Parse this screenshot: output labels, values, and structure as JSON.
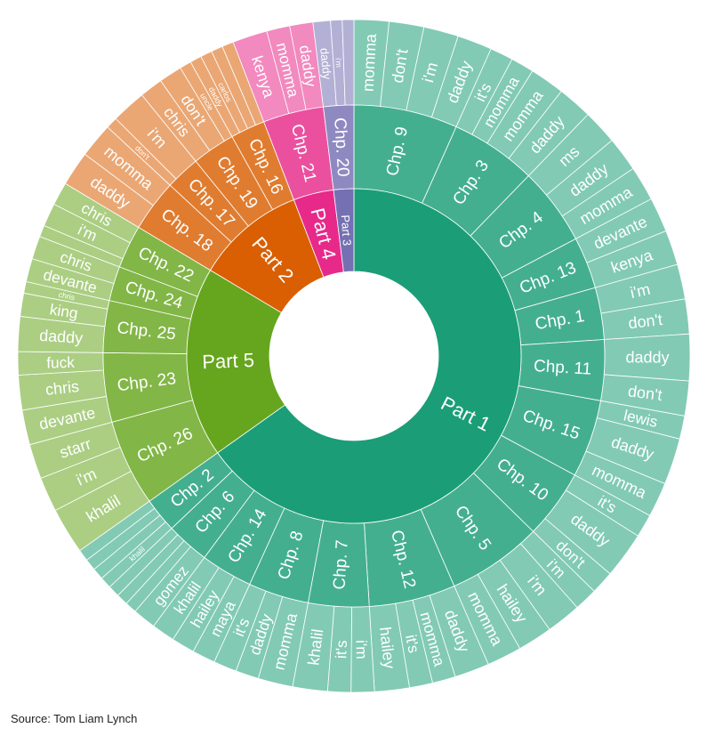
{
  "source_text": "Source: Tom Liam Lynch",
  "chart_data": {
    "type": "sunburst",
    "title": "",
    "root": {
      "value": 1
    },
    "parts": [
      {
        "name": "Part 1",
        "color": "#1b9e77",
        "chapters": [
          {
            "name": "Chp. 9",
            "words": [
              {
                "w": "momma",
                "v": 3
              },
              {
                "w": "don't",
                "v": 3
              },
              {
                "w": "i'm",
                "v": 3
              },
              {
                "w": "daddy",
                "v": 3
              }
            ]
          },
          {
            "name": "Chp. 3",
            "words": [
              {
                "w": "it's",
                "v": 2
              },
              {
                "w": "momma",
                "v": 2
              },
              {
                "w": "momma",
                "v": 3
              },
              {
                "w": "daddy",
                "v": 3
              }
            ]
          },
          {
            "name": "Chp. 4",
            "words": [
              {
                "w": "ms",
                "v": 3
              },
              {
                "w": "daddy",
                "v": 3
              },
              {
                "w": "momma",
                "v": 3
              }
            ]
          },
          {
            "name": "Chp. 13",
            "words": [
              {
                "w": "devante",
                "v": 3
              },
              {
                "w": "kenya",
                "v": 3
              }
            ]
          },
          {
            "name": "Chp. 1",
            "words": [
              {
                "w": "i'm",
                "v": 3
              },
              {
                "w": "don't",
                "v": 3
              }
            ]
          },
          {
            "name": "Chp. 11",
            "words": [
              {
                "w": "daddy",
                "v": 4
              },
              {
                "w": "don't",
                "v": 3
              }
            ]
          },
          {
            "name": "Chp. 15",
            "words": [
              {
                "w": "lewis",
                "v": 2
              },
              {
                "w": "daddy",
                "v": 4
              },
              {
                "w": "momma",
                "v": 3
              }
            ]
          },
          {
            "name": "Chp. 10",
            "words": [
              {
                "w": "it's",
                "v": 2
              },
              {
                "w": "daddy",
                "v": 4
              },
              {
                "w": "don't",
                "v": 2
              }
            ]
          },
          {
            "name": "Chp. 5",
            "words": [
              {
                "w": "i'm",
                "v": 2
              },
              {
                "w": "i'm",
                "v": 3
              },
              {
                "w": "hailey",
                "v": 3
              },
              {
                "w": "momma",
                "v": 3
              }
            ]
          },
          {
            "name": "Chp. 12",
            "words": [
              {
                "w": "daddy",
                "v": 3
              },
              {
                "w": "momma",
                "v": 2
              },
              {
                "w": "it's",
                "v": 2
              },
              {
                "w": "hailey",
                "v": 3
              }
            ]
          },
          {
            "name": "Chp. 7",
            "words": [
              {
                "w": "i'm",
                "v": 2
              },
              {
                "w": "it's",
                "v": 2
              },
              {
                "w": "khalil",
                "v": 3
              }
            ]
          },
          {
            "name": "Chp. 8",
            "words": [
              {
                "w": "momma",
                "v": 3
              },
              {
                "w": "daddy",
                "v": 2
              },
              {
                "w": "it's",
                "v": 2
              }
            ]
          },
          {
            "name": "Chp. 14",
            "words": [
              {
                "w": "maya",
                "v": 2
              },
              {
                "w": "hailey",
                "v": 2
              },
              {
                "w": "khalil",
                "v": 2
              }
            ]
          },
          {
            "name": "Chp. 6",
            "words": [
              {
                "w": "gomez",
                "v": 2
              },
              {
                "w": "",
                "v": 1
              },
              {
                "w": "",
                "v": 1
              },
              {
                "w": "",
                "v": 1
              }
            ]
          },
          {
            "name": "Chp. 2",
            "words": [
              {
                "w": "khalil",
                "v": 1
              },
              {
                "w": "",
                "v": 1
              },
              {
                "w": "",
                "v": 1
              },
              {
                "w": "",
                "v": 1
              }
            ]
          }
        ]
      },
      {
        "name": "Part 5",
        "color": "#66a61e",
        "chapters": [
          {
            "name": "Chp. 26",
            "words": [
              {
                "w": "khalil",
                "v": 4
              },
              {
                "w": "i'm",
                "v": 3
              },
              {
                "w": "starr",
                "v": 3
              }
            ]
          },
          {
            "name": "Chp. 23",
            "words": [
              {
                "w": "devante",
                "v": 3
              },
              {
                "w": "chris",
                "v": 3
              },
              {
                "w": "fuck",
                "v": 2
              }
            ]
          },
          {
            "name": "Chp. 25",
            "words": [
              {
                "w": "daddy",
                "v": 3
              },
              {
                "w": "king",
                "v": 2
              },
              {
                "w": "chris",
                "v": 1
              }
            ]
          },
          {
            "name": "Chp. 24",
            "words": [
              {
                "w": "devante",
                "v": 2
              },
              {
                "w": "chris",
                "v": 2
              }
            ]
          },
          {
            "name": "Chp. 22",
            "words": [
              {
                "w": "",
                "v": 1
              },
              {
                "w": "i'm",
                "v": 2
              },
              {
                "w": "chris",
                "v": 2
              }
            ]
          }
        ]
      },
      {
        "name": "Part 2",
        "color": "#d95f02",
        "chapters": [
          {
            "name": "Chp. 18",
            "words": [
              {
                "w": "daddy",
                "v": 3
              },
              {
                "w": "momma",
                "v": 3
              }
            ]
          },
          {
            "name": "Chp. 17",
            "words": [
              {
                "w": "don't",
                "v": 1
              },
              {
                "w": "i'm",
                "v": 3
              }
            ]
          },
          {
            "name": "Chp. 19",
            "words": [
              {
                "w": "chris",
                "v": 2
              },
              {
                "w": "don't",
                "v": 2
              },
              {
                "w": "uncle",
                "v": 1
              }
            ]
          },
          {
            "name": "Chp. 16",
            "words": [
              {
                "w": "daddy",
                "v": 1
              },
              {
                "w": "carlos",
                "v": 1
              },
              {
                "w": "",
                "v": 1
              },
              {
                "w": "",
                "v": 1
              }
            ]
          }
        ]
      },
      {
        "name": "Part 4",
        "color": "#e7298a",
        "chapters": [
          {
            "name": "Chp. 21",
            "words": [
              {
                "w": "kenya",
                "v": 3
              },
              {
                "w": "momma",
                "v": 2
              },
              {
                "w": "daddy",
                "v": 2
              }
            ]
          }
        ]
      },
      {
        "name": "Part 3",
        "color": "#7570b3",
        "chapters": [
          {
            "name": "Chp. 20",
            "words": [
              {
                "w": "daddy",
                "v": 1.5
              },
              {
                "w": "i'm",
                "v": 1
              },
              {
                "w": "",
                "v": 1
              }
            ]
          }
        ]
      }
    ]
  }
}
